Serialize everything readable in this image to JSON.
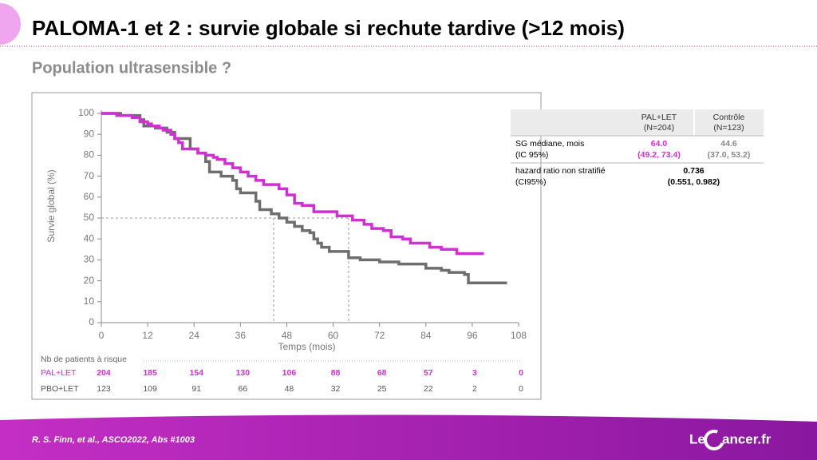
{
  "slide": {
    "title": "PALOMA-1 et 2 : survie globale si rechute tardive (>12 mois)",
    "subtitle": "Population ultrasensible ?",
    "footer": "R. S. Finn, et al.,  ASCO2022, Abs #1003",
    "logo_prefix": "Le",
    "logo_main": "ancer.fr"
  },
  "chart_data": {
    "type": "line",
    "xlabel": "Temps (mois)",
    "ylabel": "Survie global (%)",
    "xlim": [
      0,
      108
    ],
    "ylim": [
      0,
      100
    ],
    "xticks": [
      0,
      12,
      24,
      36,
      48,
      60,
      72,
      84,
      96,
      108
    ],
    "yticks": [
      0,
      10,
      20,
      30,
      40,
      50,
      60,
      70,
      80,
      90,
      100
    ],
    "median_y": 50,
    "median_x": [
      44.6,
      64.0
    ],
    "series": [
      {
        "name": "PAL+LET",
        "color": "#d12fd1",
        "x": [
          0,
          3,
          4,
          7,
          8,
          10,
          12,
          13,
          15,
          16,
          18,
          19,
          20,
          21,
          24,
          25,
          27,
          29,
          30,
          32,
          34,
          36,
          38,
          40,
          42,
          46,
          48,
          50,
          52,
          55,
          61,
          65,
          68,
          70,
          73,
          75,
          78,
          80,
          85,
          88,
          92,
          99
        ],
        "values": [
          100,
          100,
          99,
          99,
          98,
          96,
          95,
          94,
          93,
          92,
          90,
          88,
          86,
          83,
          83,
          81,
          80,
          79,
          78,
          76,
          74,
          72,
          70,
          68,
          66,
          64,
          61,
          57,
          56,
          53,
          51,
          49,
          47,
          45,
          44,
          41,
          40,
          38,
          36,
          35,
          33,
          33
        ]
      },
      {
        "name": "PBO+LET",
        "color": "#6e6e6e",
        "x": [
          0,
          5,
          10,
          11,
          14,
          17,
          19,
          23,
          25,
          27,
          28,
          31,
          34,
          35,
          36,
          40,
          41,
          44,
          46,
          48,
          50,
          52,
          54,
          55,
          56,
          57,
          59,
          64,
          67,
          72,
          77,
          81,
          84,
          88,
          90,
          94,
          95,
          105
        ],
        "values": [
          100,
          99,
          97,
          94,
          93,
          91,
          88,
          83,
          81,
          77,
          72,
          70,
          68,
          64,
          62,
          58,
          54,
          52,
          50,
          48,
          46,
          44,
          43,
          40,
          38,
          36,
          34,
          31,
          30,
          29,
          28,
          28,
          26,
          25,
          24,
          23,
          19,
          19
        ]
      }
    ],
    "risk_table": {
      "label": "Nb de patients à risque",
      "rows": [
        {
          "name": "PAL+LET",
          "color": "#d12fd1",
          "values": [
            204,
            185,
            154,
            130,
            106,
            88,
            68,
            57,
            3,
            0
          ]
        },
        {
          "name": "PBO+LET",
          "color": "#555555",
          "values": [
            123,
            109,
            91,
            66,
            48,
            32,
            25,
            22,
            2,
            0
          ]
        }
      ]
    }
  },
  "table": {
    "header": [
      [
        "PAL+LET",
        "(N=204)"
      ],
      [
        "Contrôle",
        "(N=123)"
      ]
    ],
    "rows": [
      {
        "label": [
          "SG médiane, mois",
          "(IC 95%)"
        ],
        "cells": [
          [
            "64.0",
            "(49.2, 73.4)"
          ],
          [
            "44.6",
            "(37.0, 53.2)"
          ]
        ]
      },
      {
        "label": [
          "hazard ratio non stratifié",
          "(CI95%)"
        ],
        "cells": [
          [
            "0.736",
            "(0.551, 0.982)"
          ]
        ]
      }
    ]
  }
}
